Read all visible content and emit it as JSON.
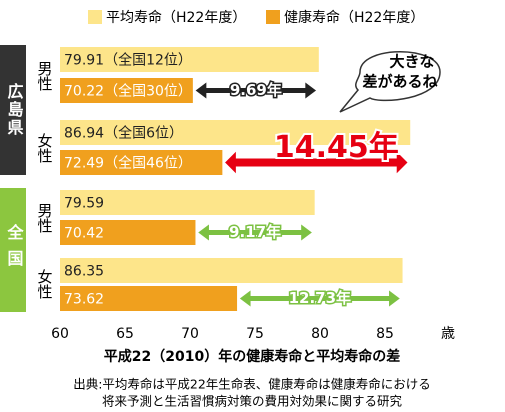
{
  "chart_data": {
    "type": "bar",
    "orientation": "horizontal",
    "groups": [
      "広島県",
      "全国"
    ],
    "categories": [
      "男性",
      "女性",
      "男性",
      "女性"
    ],
    "series": [
      {
        "name": "平均寿命（H22年度）",
        "color": "#fde58a",
        "values": [
          79.91,
          86.94,
          79.59,
          86.35
        ],
        "value_labels": [
          "79.91（全国12位）",
          "86.94（全国6位）",
          "79.59",
          "86.35"
        ]
      },
      {
        "name": "健康寿命（H22年度）",
        "color": "#f0a01e",
        "values": [
          70.22,
          72.49,
          70.42,
          73.62
        ],
        "value_labels": [
          "70.22（全国30位）",
          "72.49（全国46位）",
          "70.42",
          "73.62"
        ]
      }
    ],
    "differences": {
      "values": [
        9.69,
        14.45,
        9.17,
        12.73
      ],
      "value_labels": [
        "9.69年",
        "14.45年",
        "9.17年",
        "12.73年"
      ],
      "colors": [
        "#222222",
        "#e60012",
        "#7cc142",
        "#7cc142"
      ]
    },
    "xlim": [
      60,
      90
    ],
    "xticks": [
      60,
      65,
      70,
      75,
      80,
      85
    ],
    "x_unit": "歳",
    "grid": false,
    "xlabel": "平成22（2010）年の健康寿命と平均寿命の差",
    "callout": [
      "大きな",
      "差があるね"
    ],
    "footnote": [
      "出典:平均寿命は平成22年生命表、健康寿命は健康寿命における",
      "将来予測と生活習慣病対策の費用対効果に関する研究"
    ]
  }
}
